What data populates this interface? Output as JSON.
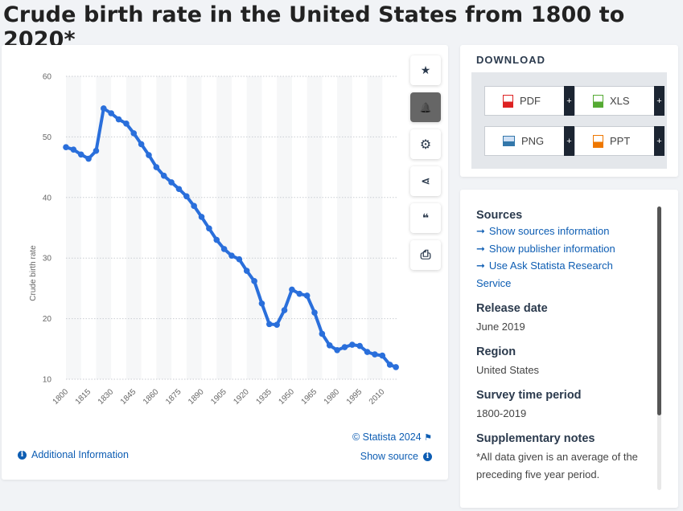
{
  "page": {
    "title": "Crude birth rate in the United States from 1800 to 2020*"
  },
  "chart_data": {
    "type": "line",
    "title": "Crude birth rate in the United States from 1800 to 2020*",
    "ylabel": "Crude birth rate",
    "xlabel": "",
    "ylim": [
      10,
      60
    ],
    "xlim": [
      1800,
      2020
    ],
    "yticks": [
      10,
      20,
      30,
      40,
      50,
      60
    ],
    "xticks": [
      1800,
      1815,
      1830,
      1845,
      1860,
      1875,
      1890,
      1905,
      1920,
      1935,
      1950,
      1965,
      1980,
      1995,
      2010
    ],
    "grid": true,
    "series": [
      {
        "color": "#2a6fdb",
        "x": [
          1800,
          1805,
          1810,
          1815,
          1820,
          1825,
          1830,
          1835,
          1840,
          1845,
          1850,
          1855,
          1860,
          1865,
          1870,
          1875,
          1880,
          1885,
          1890,
          1895,
          1900,
          1905,
          1910,
          1915,
          1920,
          1925,
          1930,
          1935,
          1940,
          1945,
          1950,
          1955,
          1960,
          1965,
          1970,
          1975,
          1980,
          1985,
          1990,
          1995,
          2000,
          2005,
          2010,
          2015,
          2019
        ],
        "values": [
          48.3,
          47.9,
          47.1,
          46.4,
          47.7,
          54.7,
          53.9,
          52.9,
          52.2,
          50.6,
          48.8,
          47.0,
          45.0,
          43.6,
          42.5,
          41.4,
          40.2,
          38.6,
          36.8,
          34.9,
          33.0,
          31.5,
          30.4,
          29.8,
          27.9,
          26.2,
          22.5,
          19.1,
          19.0,
          21.4,
          24.8,
          24.1,
          23.8,
          21.0,
          17.5,
          15.6,
          14.8,
          15.3,
          15.7,
          15.5,
          14.5,
          14.1,
          13.9,
          12.4,
          12.0
        ]
      }
    ]
  },
  "toolbar": {
    "icons": [
      "star-icon",
      "bell-icon",
      "gear-icon",
      "share-icon",
      "quote-icon",
      "print-icon"
    ],
    "star": "★",
    "bell": "🔔",
    "gear": "⚙",
    "share": "⋖",
    "quote": "❝",
    "print": "⎙"
  },
  "footer": {
    "copyright": "© Statista 2024",
    "additional_info": "Additional Information",
    "show_source": "Show source",
    "info_glyph": "i"
  },
  "download": {
    "title": "DOWNLOAD",
    "buttons": [
      {
        "label": "PDF",
        "plus": "+",
        "color": "#d22"
      },
      {
        "label": "XLS",
        "plus": "+",
        "color": "#5a3"
      },
      {
        "label": "PNG",
        "plus": "+",
        "color": "#37a"
      },
      {
        "label": "PPT",
        "plus": "+",
        "color": "#e70"
      }
    ]
  },
  "info": {
    "sources_heading": "Sources",
    "sources_links": [
      "Show sources information",
      "Show publisher information",
      "Use Ask Statista Research Service"
    ],
    "arrow": "➞",
    "release_heading": "Release date",
    "release_value": "June 2019",
    "region_heading": "Region",
    "region_value": "United States",
    "survey_heading": "Survey time period",
    "survey_value": "1800-2019",
    "notes_heading": "Supplementary notes",
    "notes_value": "*All data given is an average of the preceding five year period."
  }
}
